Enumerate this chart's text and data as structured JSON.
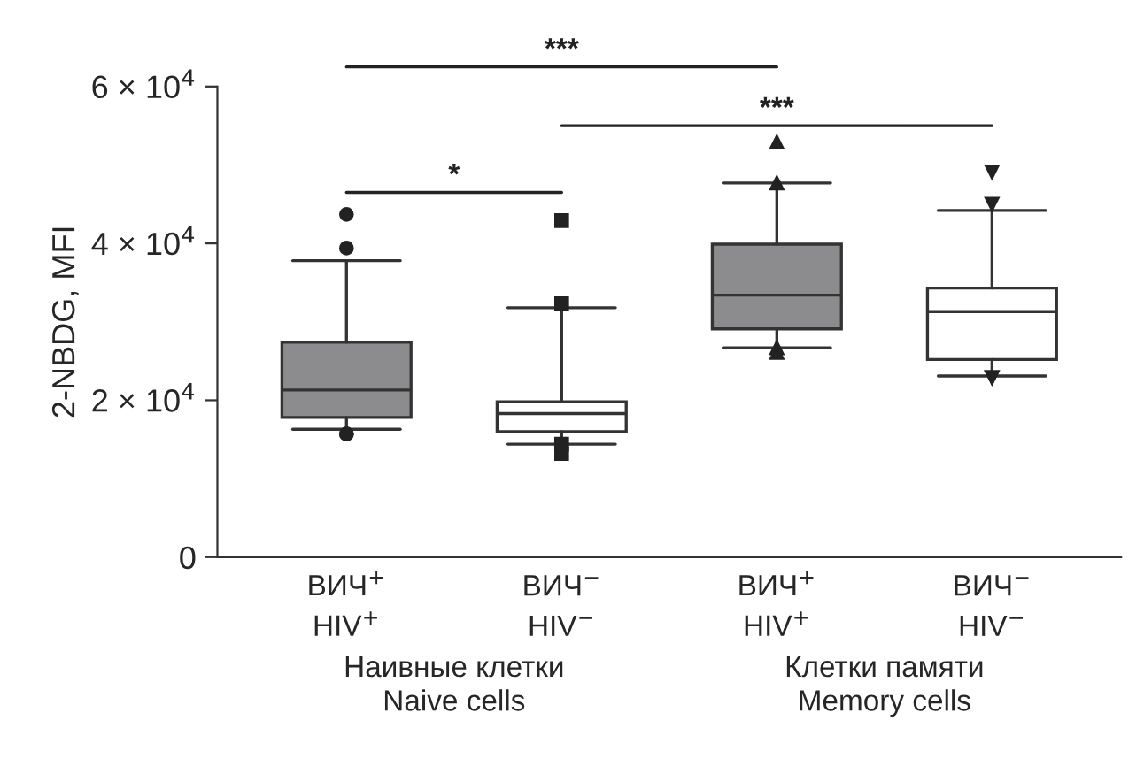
{
  "chart_data": {
    "type": "box",
    "ylabel": "2-NBDG, MFI",
    "categories": [
      "ВИЧ$^{+}$\nHIV$^{+}$",
      "ВИЧ$^{−}$\nHIV$^{−}$",
      "ВИЧ$^{+}$\nHIV$^{+}$",
      "ВИЧ$^{−}$\nHIV$^{−}$"
    ],
    "series": [
      {
        "color": "#8c8c8f",
        "marker": "circle",
        "boxes": [
          {
            "low": 16300,
            "q1": 17800,
            "median": 21300,
            "q3": 27400,
            "high": 37800,
            "outliers": [
              43700,
              39400,
              15700,
              15700
            ]
          },
          null,
          null,
          null
        ]
      },
      {
        "color": "#ffffff",
        "marker": "square",
        "boxes": [
          null,
          {
            "low": 14400,
            "q1": 16000,
            "median": 18300,
            "q3": 19800,
            "high": 31800,
            "outliers": [
              42900,
              32300,
              14400,
              13200
            ]
          },
          null,
          null
        ]
      },
      {
        "color": "#8c8c8f",
        "marker": "triangle",
        "boxes": [
          null,
          null,
          {
            "low": 26700,
            "q1": 29100,
            "median": 33400,
            "q3": 39900,
            "high": 47700,
            "outliers": [
              52900,
              47700,
              26700,
              26100
            ]
          },
          null
        ]
      },
      {
        "color": "#ffffff",
        "marker": "triangle_down",
        "boxes": [
          null,
          null,
          null,
          {
            "low": 23100,
            "q1": 25200,
            "median": 31300,
            "q3": 34300,
            "high": 44200,
            "outliers": [
              49100,
              45000,
              22900,
              22900
            ]
          }
        ]
      }
    ],
    "ylim": [
      0,
      60000
    ],
    "yticks": [
      0,
      {
        "value": 20000,
        "label": "2 × 10$^{4}$"
      },
      {
        "value": 40000,
        "label": "4 × 10$^{4}$"
      },
      {
        "value": 60000,
        "label": "6 × 10$^{4}$"
      }
    ],
    "grid": false,
    "annotations": [
      "*",
      "***",
      "***",
      "Наивные клетки\nNaive cells",
      "Клетки памяти\nMemory cells"
    ]
  }
}
